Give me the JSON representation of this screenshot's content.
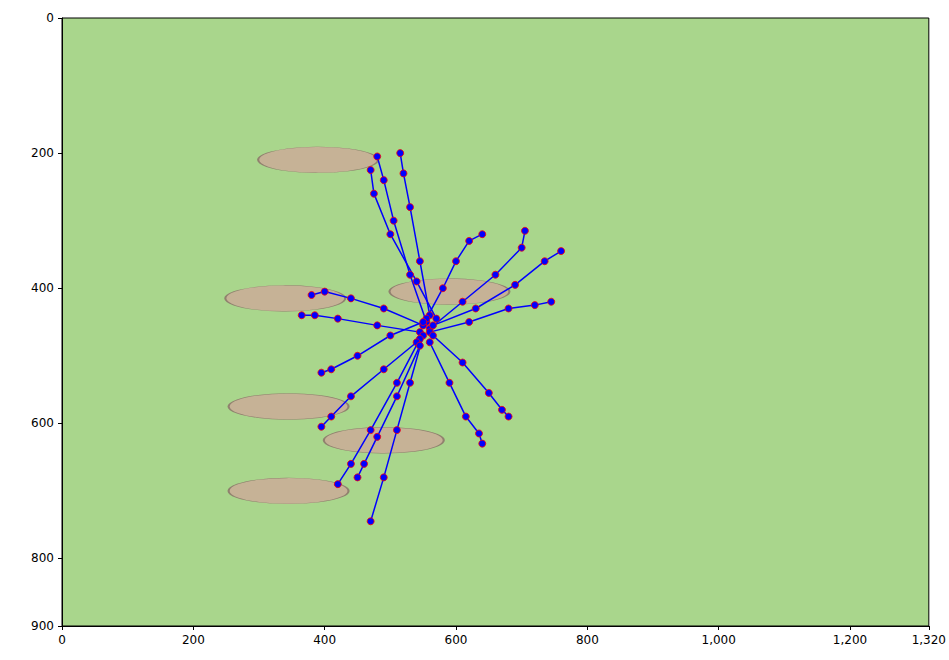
{
  "chart_data": {
    "type": "line",
    "marker": "circle",
    "color": "#0000ff",
    "xlim": [
      0,
      1320
    ],
    "xticks": [
      0,
      200,
      400,
      600,
      800,
      1000,
      1200
    ],
    "ylim": [
      900,
      0
    ],
    "yticks": [
      0,
      200,
      400,
      600,
      800
    ],
    "grid": false,
    "mounds": [
      [
        390,
        210
      ],
      [
        340,
        415
      ],
      [
        590,
        405
      ],
      [
        345,
        575
      ],
      [
        490,
        625
      ],
      [
        345,
        700
      ]
    ],
    "series": [
      {
        "values": [
          [
            555,
            450
          ],
          [
            530,
            380
          ],
          [
            505,
            300
          ],
          [
            490,
            240
          ],
          [
            480,
            205
          ]
        ]
      },
      {
        "values": [
          [
            560,
            440
          ],
          [
            545,
            360
          ],
          [
            530,
            280
          ],
          [
            520,
            230
          ],
          [
            515,
            200
          ]
        ]
      },
      {
        "values": [
          [
            570,
            445
          ],
          [
            540,
            390
          ],
          [
            500,
            320
          ],
          [
            475,
            260
          ],
          [
            470,
            225
          ]
        ]
      },
      {
        "values": [
          [
            560,
            460
          ],
          [
            610,
            420
          ],
          [
            660,
            380
          ],
          [
            700,
            340
          ],
          [
            705,
            315
          ]
        ]
      },
      {
        "values": [
          [
            565,
            455
          ],
          [
            630,
            430
          ],
          [
            690,
            395
          ],
          [
            735,
            360
          ],
          [
            760,
            345
          ]
        ]
      },
      {
        "values": [
          [
            560,
            465
          ],
          [
            620,
            450
          ],
          [
            680,
            430
          ],
          [
            720,
            425
          ],
          [
            745,
            420
          ]
        ]
      },
      {
        "values": [
          [
            550,
            455
          ],
          [
            490,
            430
          ],
          [
            440,
            415
          ],
          [
            400,
            405
          ],
          [
            380,
            410
          ]
        ]
      },
      {
        "values": [
          [
            545,
            465
          ],
          [
            480,
            455
          ],
          [
            420,
            445
          ],
          [
            385,
            440
          ],
          [
            365,
            440
          ]
        ]
      },
      {
        "values": [
          [
            550,
            470
          ],
          [
            530,
            540
          ],
          [
            510,
            610
          ],
          [
            490,
            680
          ],
          [
            470,
            745
          ]
        ]
      },
      {
        "values": [
          [
            545,
            475
          ],
          [
            510,
            540
          ],
          [
            470,
            610
          ],
          [
            440,
            660
          ],
          [
            420,
            690
          ]
        ]
      },
      {
        "values": [
          [
            560,
            480
          ],
          [
            590,
            540
          ],
          [
            615,
            590
          ],
          [
            635,
            615
          ],
          [
            640,
            630
          ]
        ]
      },
      {
        "values": [
          [
            565,
            470
          ],
          [
            610,
            510
          ],
          [
            650,
            555
          ],
          [
            670,
            580
          ],
          [
            680,
            590
          ]
        ]
      },
      {
        "values": [
          [
            540,
            480
          ],
          [
            490,
            520
          ],
          [
            440,
            560
          ],
          [
            410,
            590
          ],
          [
            395,
            605
          ]
        ]
      },
      {
        "values": [
          [
            545,
            485
          ],
          [
            510,
            560
          ],
          [
            480,
            620
          ],
          [
            460,
            660
          ],
          [
            450,
            680
          ]
        ]
      },
      {
        "values": [
          [
            555,
            445
          ],
          [
            580,
            400
          ],
          [
            600,
            360
          ],
          [
            620,
            330
          ],
          [
            640,
            320
          ]
        ]
      },
      {
        "values": [
          [
            550,
            450
          ],
          [
            500,
            470
          ],
          [
            450,
            500
          ],
          [
            410,
            520
          ],
          [
            395,
            525
          ]
        ]
      }
    ]
  }
}
